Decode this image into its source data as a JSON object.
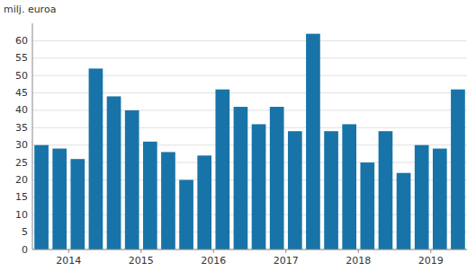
{
  "chart_data": {
    "type": "bar",
    "ylabel": "milj. euroa",
    "categories": [
      "2014",
      null,
      null,
      null,
      "2015",
      null,
      null,
      null,
      "2016",
      null,
      null,
      null,
      "2017",
      null,
      null,
      null,
      "2018",
      null,
      null,
      null,
      "2019",
      null,
      null,
      null
    ],
    "values": [
      30,
      29,
      26,
      52,
      44,
      40,
      31,
      28,
      20,
      27,
      46,
      41,
      36,
      41,
      34,
      62,
      34,
      36,
      25,
      34,
      22,
      30,
      29,
      46
    ],
    "color": "#1874a8",
    "ylim": [
      0,
      65
    ],
    "yticks": [
      0,
      5,
      10,
      15,
      20,
      25,
      30,
      35,
      40,
      45,
      50,
      55,
      60
    ],
    "grid": true
  }
}
